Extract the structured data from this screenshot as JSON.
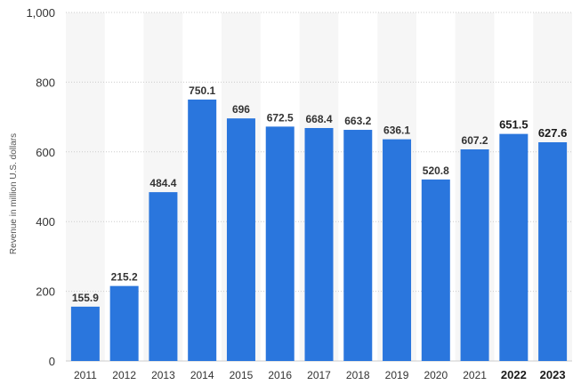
{
  "chart_data": {
    "type": "bar",
    "categories": [
      "2011",
      "2012",
      "2013",
      "2014",
      "2015",
      "2016",
      "2017",
      "2018",
      "2019",
      "2020",
      "2021",
      "2022",
      "2023"
    ],
    "values": [
      155.9,
      215.2,
      484.4,
      750.1,
      696,
      672.5,
      668.4,
      663.2,
      636.1,
      520.8,
      607.2,
      651.5,
      627.6
    ],
    "data_labels": [
      "155.9",
      "215.2",
      "484.4",
      "750.1",
      "696",
      "672.5",
      "668.4",
      "663.2",
      "636.1",
      "520.8",
      "607.2",
      "651.5",
      "627.6"
    ],
    "emphasized_categories": [
      "2022",
      "2023"
    ],
    "title": "",
    "xlabel": "",
    "ylabel": "Revenue in million U.S. dollars",
    "ylim": [
      0,
      1000
    ],
    "yticks": [
      0,
      200,
      400,
      600,
      800,
      1000
    ],
    "ytick_labels": [
      "0",
      "200",
      "400",
      "600",
      "800",
      "1,000"
    ],
    "grid": true,
    "legend": "none",
    "colors": {
      "bar": "#2a76dd",
      "band": "#f6f6f6",
      "grid": "#cccccc"
    }
  }
}
